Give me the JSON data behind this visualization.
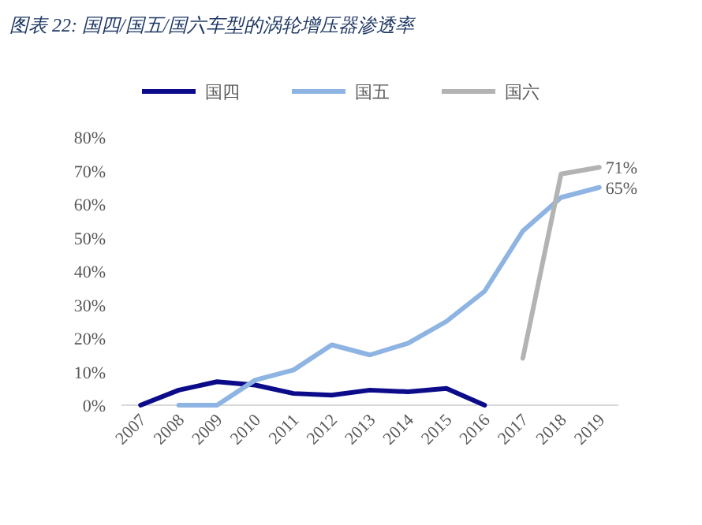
{
  "chart_data": {
    "type": "line",
    "title": "图表 22: 国四/国五/国六车型的涡轮增压器渗透率",
    "categories": [
      "2007",
      "2008",
      "2009",
      "2010",
      "2011",
      "2012",
      "2013",
      "2014",
      "2015",
      "2016",
      "2017",
      "2018",
      "2019"
    ],
    "series": [
      {
        "name": "国四",
        "color": "#0c0c8a",
        "values": [
          0,
          4.5,
          7,
          6,
          3.5,
          3,
          4.5,
          4,
          5,
          0,
          null,
          null,
          null
        ]
      },
      {
        "name": "国五",
        "color": "#8eb4e3",
        "values": [
          null,
          0,
          0,
          7.5,
          10.5,
          18,
          15,
          18.5,
          25,
          34,
          52,
          62,
          65
        ],
        "value_labels": [
          null,
          null,
          null,
          null,
          null,
          null,
          null,
          null,
          null,
          null,
          null,
          null,
          "65%"
        ]
      },
      {
        "name": "国六",
        "color": "#b3b3b3",
        "values": [
          null,
          null,
          null,
          null,
          null,
          null,
          null,
          null,
          null,
          null,
          14,
          69,
          71
        ],
        "value_labels": [
          null,
          null,
          null,
          null,
          null,
          null,
          null,
          null,
          null,
          null,
          null,
          null,
          "71%"
        ]
      }
    ],
    "ylim": [
      0,
      80
    ],
    "yticks": [
      {
        "value": 0,
        "label": "0%"
      },
      {
        "value": 10,
        "label": "10%"
      },
      {
        "value": 20,
        "label": "20%"
      },
      {
        "value": 30,
        "label": "30%"
      },
      {
        "value": 40,
        "label": "40%"
      },
      {
        "value": 50,
        "label": "50%"
      },
      {
        "value": 60,
        "label": "60%"
      },
      {
        "value": 70,
        "label": "70%"
      },
      {
        "value": 80,
        "label": "80%"
      }
    ],
    "grid": false,
    "legend": "top",
    "marker": "none",
    "line_style": "solid"
  }
}
